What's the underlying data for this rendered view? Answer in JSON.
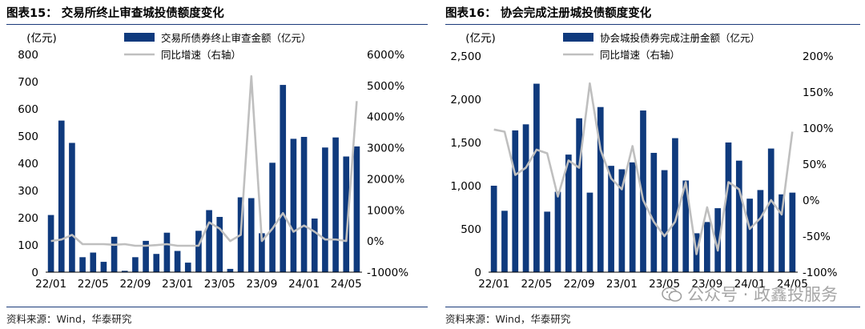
{
  "figures": [
    {
      "title": "图表15：  交易所终止审查城投债额度变化",
      "source": "资料来源：Wind，华泰研究"
    },
    {
      "title": "图表16：  协会完成注册城投债额度变化",
      "source": "资料来源：Wind，华泰研究"
    }
  ],
  "watermark": "公众号 · 政鑫投服务",
  "colors": {
    "bar": "#0f3a7d",
    "line": "#bfbfbf",
    "rule": "#1a3a7a"
  },
  "chart_data": [
    {
      "type": "bar",
      "left_unit": "(亿元)",
      "series": [
        {
          "name": "交易所债券终止审查金额（亿元）",
          "type": "bar",
          "axis": "left",
          "values": [
            210,
            557,
            475,
            55,
            72,
            38,
            130,
            5,
            55,
            115,
            67,
            145,
            78,
            35,
            152,
            228,
            203,
            12,
            275,
            272,
            143,
            402,
            688,
            490,
            497,
            197,
            458,
            495,
            425,
            462
          ]
        },
        {
          "name": "同比增速（右轴）",
          "type": "line",
          "axis": "right",
          "values": [
            0,
            50,
            200,
            -100,
            -100,
            -100,
            -120,
            -100,
            -150,
            -150,
            -130,
            -100,
            -150,
            -150,
            -150,
            600,
            400,
            0,
            200,
            5300,
            0,
            400,
            900,
            300,
            500,
            300,
            50,
            50,
            0,
            4500
          ]
        }
      ],
      "ylim": [
        0,
        800
      ],
      "y2lim": [
        -1000,
        6000
      ],
      "yticks": [
        "0",
        "100",
        "200",
        "300",
        "400",
        "500",
        "600",
        "700",
        "800"
      ],
      "y2ticks": [
        "-1000%",
        "0%",
        "1000%",
        "2000%",
        "3000%",
        "4000%",
        "5000%",
        "6000%"
      ],
      "xticks": [
        "22/01",
        "22/05",
        "22/09",
        "23/01",
        "23/05",
        "23/09",
        "24/01",
        "24/05"
      ]
    },
    {
      "type": "bar",
      "left_unit": "(亿元)",
      "series": [
        {
          "name": "协会城投债券完成注册金额（亿元）",
          "type": "bar",
          "axis": "left",
          "values": [
            1000,
            710,
            1640,
            1710,
            2180,
            700,
            930,
            1360,
            1780,
            920,
            1910,
            1230,
            1190,
            1270,
            1870,
            1380,
            1180,
            1550,
            1060,
            450,
            580,
            740,
            1500,
            1290,
            850,
            950,
            1430,
            900,
            920
          ]
        },
        {
          "name": "同比增速（右轴）",
          "type": "line",
          "axis": "right",
          "values": [
            98,
            95,
            35,
            45,
            70,
            65,
            5,
            55,
            45,
            162,
            70,
            30,
            15,
            75,
            0,
            -30,
            -50,
            -30,
            25,
            -75,
            -10,
            -70,
            25,
            15,
            -40,
            -25,
            0,
            -20,
            95
          ]
        }
      ],
      "ylim": [
        0,
        2500
      ],
      "y2lim": [
        -100,
        200
      ],
      "yticks": [
        "0",
        "500",
        "1,000",
        "1,500",
        "2,000",
        "2,500"
      ],
      "y2ticks": [
        "-100%",
        "-50%",
        "0%",
        "50%",
        "100%",
        "150%",
        "200%"
      ],
      "xticks": [
        "22/01",
        "22/05",
        "22/09",
        "23/01",
        "23/05",
        "23/09",
        "24/01",
        "24/05"
      ]
    }
  ]
}
